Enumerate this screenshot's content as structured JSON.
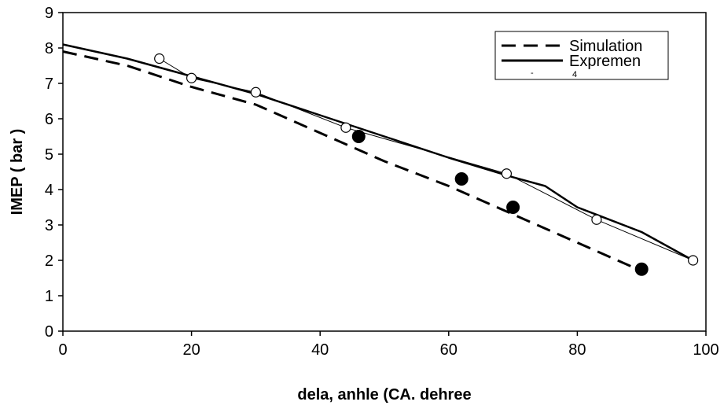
{
  "chart_data": {
    "type": "line",
    "xlabel": "dela, anhle (CA.  dehree",
    "ylabel": "IMEP ( bar )",
    "xlim": [
      0,
      100
    ],
    "ylim": [
      0,
      9
    ],
    "x_ticks": [
      0,
      20,
      40,
      60,
      80,
      100
    ],
    "y_ticks": [
      0,
      1,
      2,
      3,
      4,
      5,
      6,
      7,
      8,
      9
    ],
    "x_tick_labels": [
      "0",
      "20",
      "40",
      "60",
      "80",
      "100"
    ],
    "y_tick_labels": [
      "0",
      "1",
      "2",
      "3",
      "4",
      "5",
      "6",
      "7",
      "8",
      "9"
    ],
    "grid": false,
    "legend_position": "top-right",
    "series": [
      {
        "name": "Simulation",
        "style": "dashed",
        "color": "#000000",
        "x": [
          0,
          10,
          20,
          30,
          40,
          50,
          60,
          70,
          80,
          90
        ],
        "y": [
          7.9,
          7.5,
          6.9,
          6.4,
          5.6,
          4.8,
          4.1,
          3.3,
          2.5,
          1.7
        ]
      },
      {
        "name": "Expremen",
        "style": "solid",
        "color": "#000000",
        "x": [
          0,
          10,
          20,
          30,
          40,
          50,
          60,
          70,
          75,
          80,
          90,
          98
        ],
        "y": [
          8.1,
          7.7,
          7.2,
          6.7,
          6.1,
          5.5,
          4.9,
          4.35,
          4.1,
          3.5,
          2.8,
          2.0
        ]
      },
      {
        "name": "",
        "style": "markers-open",
        "color": "#000000",
        "x": [
          15,
          20,
          30,
          44,
          69,
          83,
          98
        ],
        "y": [
          7.7,
          7.15,
          6.75,
          5.75,
          4.45,
          3.15,
          2.0
        ]
      },
      {
        "name": "",
        "style": "markers-filled",
        "color": "#000000",
        "x": [
          46,
          62,
          70,
          90
        ],
        "y": [
          5.5,
          4.3,
          3.5,
          1.75
        ]
      }
    ],
    "legend": {
      "entries": [
        "Simulation",
        "Expremen"
      ],
      "ticks": [
        "-",
        "4"
      ]
    }
  }
}
